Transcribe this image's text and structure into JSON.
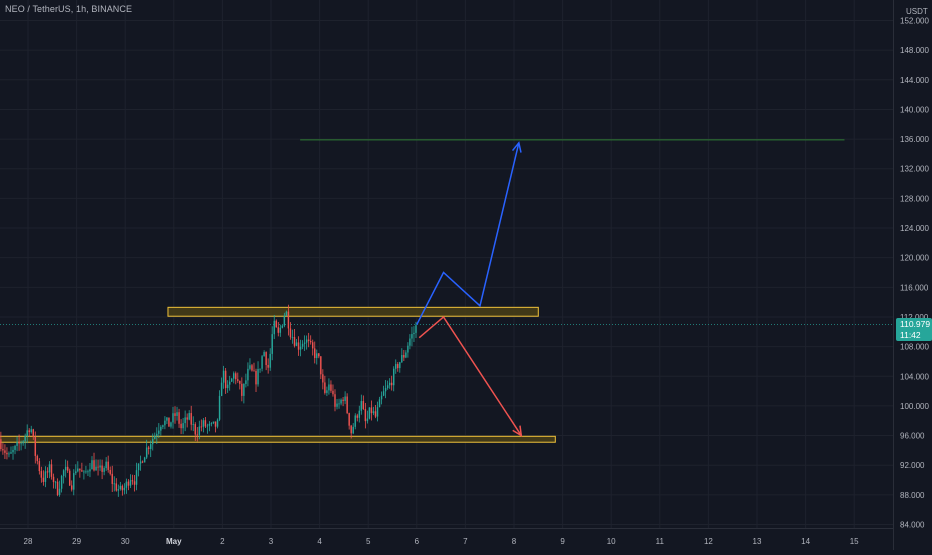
{
  "header": {
    "symbol": "NEO / TetherUS",
    "interval": "1h",
    "exchange": "BINANCE"
  },
  "price_axis": {
    "unit": "USDT",
    "current_price": "110.979",
    "countdown": "11:42"
  },
  "colors": {
    "background": "#131722",
    "grid": "#1e222d",
    "up_candle": "#26a69a",
    "down_candle": "#ef5350",
    "zone_fill": "#4a3f16",
    "zone_border": "#f0c23a",
    "target_line": "#2e7d32",
    "bull_path": "#2962ff",
    "bear_path": "#ef5350",
    "price_tag": "#26a69a"
  },
  "chart_data": {
    "type": "candlestick",
    "ylim": [
      83,
      153
    ],
    "y_ticks": [
      84,
      88,
      92,
      96,
      100,
      104,
      108,
      112,
      116,
      120,
      124,
      128,
      132,
      136,
      140,
      144,
      148,
      152
    ],
    "y_tick_labels": [
      "84.000",
      "88.000",
      "92.000",
      "96.000",
      "100.000",
      "104.000",
      "108.000",
      "112.000",
      "116.000",
      "120.000",
      "124.000",
      "128.000",
      "132.000",
      "136.000",
      "140.000",
      "144.000",
      "148.000",
      "152.000"
    ],
    "x_ticks": [
      {
        "day": 0,
        "label": "28"
      },
      {
        "day": 1,
        "label": "29"
      },
      {
        "day": 2,
        "label": "30"
      },
      {
        "day": 3,
        "label": "May"
      },
      {
        "day": 4,
        "label": "2"
      },
      {
        "day": 5,
        "label": "3"
      },
      {
        "day": 6,
        "label": "4"
      },
      {
        "day": 7,
        "label": "5"
      },
      {
        "day": 8,
        "label": "6"
      },
      {
        "day": 9,
        "label": "7"
      },
      {
        "day": 10,
        "label": "8"
      },
      {
        "day": 11,
        "label": "9"
      },
      {
        "day": 12,
        "label": "10"
      },
      {
        "day": 13,
        "label": "11"
      },
      {
        "day": 14,
        "label": "12"
      },
      {
        "day": 15,
        "label": "13"
      },
      {
        "day": 16,
        "label": "14"
      },
      {
        "day": 17,
        "label": "15"
      }
    ],
    "price_path": [
      [
        -0.6,
        95.5
      ],
      [
        -0.4,
        93.0
      ],
      [
        -0.1,
        95.5
      ],
      [
        0.05,
        97.5
      ],
      [
        0.15,
        93.5
      ],
      [
        0.3,
        90.0
      ],
      [
        0.45,
        91.5
      ],
      [
        0.6,
        88.5
      ],
      [
        0.75,
        91.5
      ],
      [
        0.9,
        89.5
      ],
      [
        1.0,
        92.0
      ],
      [
        1.15,
        90.5
      ],
      [
        1.3,
        92.5
      ],
      [
        1.45,
        91.0
      ],
      [
        1.6,
        92.0
      ],
      [
        1.75,
        89.5
      ],
      [
        1.9,
        88.5
      ],
      [
        2.0,
        89.0
      ],
      [
        2.1,
        90.5
      ],
      [
        2.2,
        90.0
      ],
      [
        2.35,
        93.0
      ],
      [
        2.5,
        95.0
      ],
      [
        2.6,
        96.0
      ],
      [
        2.75,
        98.0
      ],
      [
        2.9,
        97.5
      ],
      [
        3.05,
        99.0
      ],
      [
        3.15,
        97.0
      ],
      [
        3.3,
        98.5
      ],
      [
        3.45,
        96.5
      ],
      [
        3.6,
        97.5
      ],
      [
        3.75,
        97.0
      ],
      [
        3.9,
        97.5
      ],
      [
        4.0,
        105.0
      ],
      [
        4.1,
        102.0
      ],
      [
        4.25,
        104.5
      ],
      [
        4.4,
        101.5
      ],
      [
        4.55,
        105.0
      ],
      [
        4.7,
        103.5
      ],
      [
        4.85,
        107.5
      ],
      [
        4.95,
        105.0
      ],
      [
        5.05,
        111.0
      ],
      [
        5.15,
        109.5
      ],
      [
        5.3,
        113.0
      ],
      [
        5.4,
        110.0
      ],
      [
        5.55,
        108.0
      ],
      [
        5.7,
        109.0
      ],
      [
        5.85,
        107.5
      ],
      [
        6.0,
        106.0
      ],
      [
        6.1,
        101.0
      ],
      [
        6.2,
        103.0
      ],
      [
        6.35,
        99.5
      ],
      [
        6.5,
        101.5
      ],
      [
        6.65,
        96.5
      ],
      [
        6.75,
        98.5
      ],
      [
        6.85,
        100.5
      ],
      [
        6.95,
        97.5
      ],
      [
        7.05,
        99.5
      ],
      [
        7.15,
        98.5
      ],
      [
        7.3,
        101.5
      ],
      [
        7.45,
        103.0
      ],
      [
        7.6,
        105.5
      ],
      [
        7.75,
        107.0
      ],
      [
        7.85,
        109.0
      ],
      [
        7.95,
        110.0
      ],
      [
        8.0,
        110.98
      ]
    ],
    "zones": [
      {
        "label": "resistance",
        "x_start": 2.88,
        "x_end": 10.5,
        "y_low": 112.1,
        "y_high": 113.3
      },
      {
        "label": "support",
        "x_start": -0.6,
        "x_end": 10.85,
        "y_low": 95.1,
        "y_high": 95.9
      }
    ],
    "target_line": {
      "y": 135.9,
      "x_start": 5.6,
      "x_end": 16.8
    },
    "projections": [
      {
        "name": "bullish",
        "points": [
          [
            8.0,
            110.98
          ],
          [
            8.55,
            118.0
          ],
          [
            9.3,
            113.5
          ],
          [
            10.1,
            135.5
          ]
        ]
      },
      {
        "name": "bearish",
        "points": [
          [
            8.05,
            109.2
          ],
          [
            8.55,
            112.0
          ],
          [
            10.15,
            96.0
          ]
        ]
      }
    ]
  }
}
